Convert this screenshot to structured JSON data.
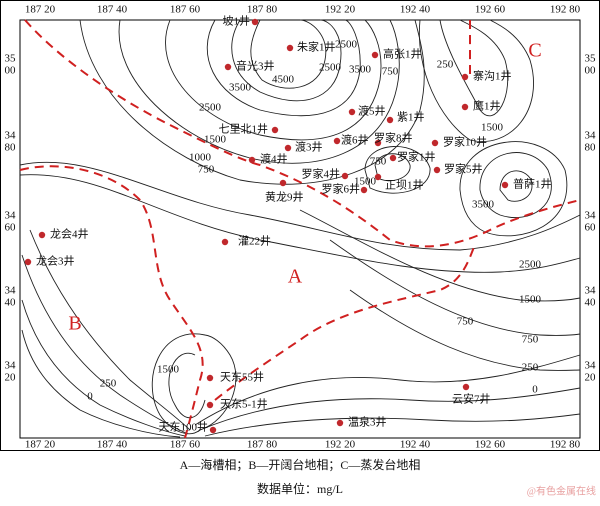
{
  "frame": {
    "top_labels": [
      "187 20",
      "187 40",
      "187 60",
      "187 80",
      "192 20",
      "192 40",
      "192 60",
      "192 80"
    ],
    "bottom_labels": [
      "187 20",
      "187 40",
      "187 60",
      "187 80",
      "192 20",
      "192 40",
      "192 60",
      "192 80"
    ],
    "left_labels": [
      [
        "35",
        "00"
      ],
      [
        "34",
        "80"
      ],
      [
        "34",
        "60"
      ],
      [
        "34",
        "40"
      ],
      [
        "34",
        "20"
      ]
    ],
    "right_labels": [
      [
        "35",
        "00"
      ],
      [
        "34",
        "80"
      ],
      [
        "34",
        "60"
      ],
      [
        "34",
        "40"
      ],
      [
        "34",
        "20"
      ]
    ]
  },
  "zones": [
    "A",
    "B",
    "C"
  ],
  "wells": [
    "坡1井",
    "朱家1井",
    "音光3井",
    "高张1井",
    "寨沟1井",
    "鹰1井",
    "渡5井",
    "紫1井",
    "七里北1井",
    "渡6井",
    "罗家8井",
    "罗家10井",
    "渡3井",
    "渡4井",
    "罗家1井",
    "罗家5井",
    "罗家4井",
    "罗家6井",
    "正坝1井",
    "黄龙9井",
    "普萨1井",
    "灌22井",
    "龙会4井",
    "龙会3井",
    "天东55井",
    "天东5-1井",
    "天东100井",
    "温泉3井",
    "云安7井"
  ],
  "contour_labels": [
    "4500",
    "3500",
    "2500",
    "3500",
    "2500",
    "750",
    "250",
    "1500",
    "2500",
    "1500",
    "1000",
    "750",
    "750",
    "1500",
    "3500",
    "2500",
    "1500",
    "750",
    "750",
    "250",
    "0",
    "1500",
    "250",
    "0"
  ],
  "caption": {
    "legend": "A—海槽相；B—开阔台地相；C—蒸发台地相",
    "unit": "数据单位：mg/L"
  },
  "watermark": "@有色金属在线"
}
